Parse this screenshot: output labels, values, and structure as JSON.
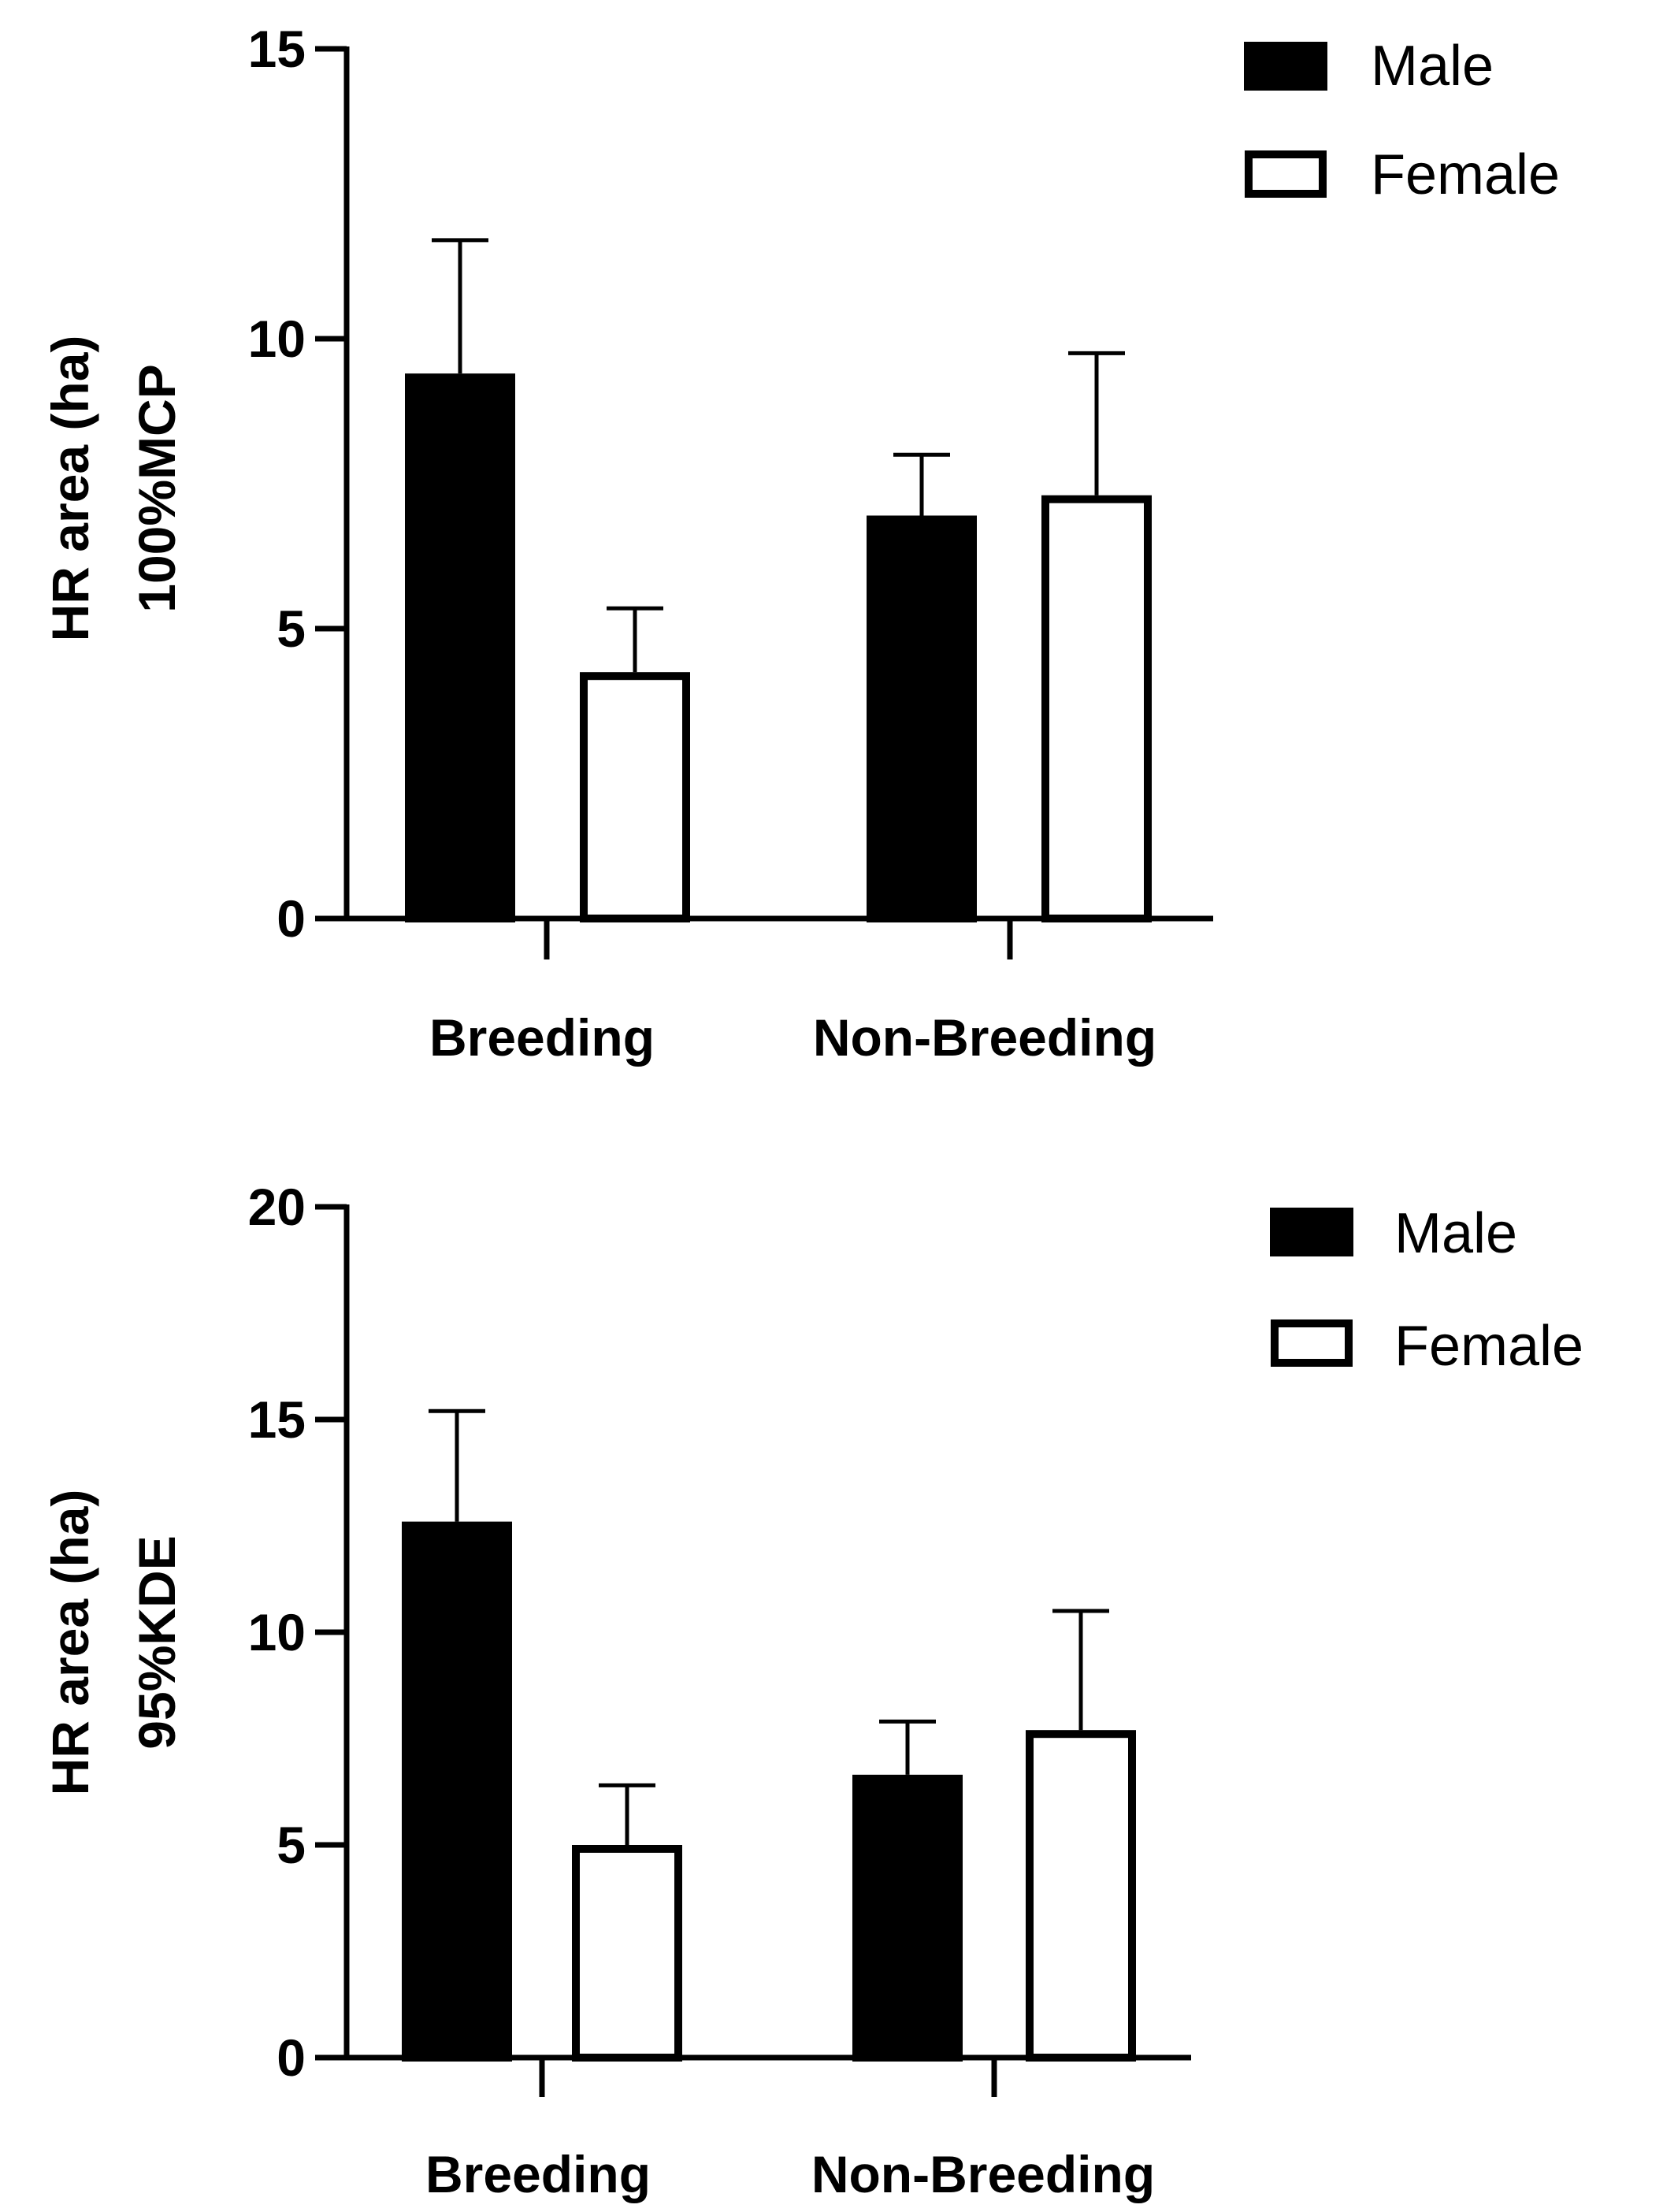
{
  "colors": {
    "male": "#000000",
    "female": "#ffffff",
    "axis": "#000000",
    "background": "#ffffff"
  },
  "chart_data": [
    {
      "type": "bar",
      "categories": [
        "Breeding",
        "Non-Breeding"
      ],
      "series": [
        {
          "name": "Male",
          "values": [
            9.4,
            6.95
          ],
          "error": [
            2.3,
            1.05
          ]
        },
        {
          "name": "Female",
          "values": [
            4.25,
            7.3
          ],
          "error": [
            1.1,
            2.45
          ]
        }
      ],
      "xlabel": "",
      "ylabel": [
        "HR area (ha)",
        "100%MCP"
      ],
      "ylim": [
        0,
        15
      ],
      "yticks": [
        0,
        5,
        10,
        15
      ],
      "ytick_labels": [
        "0",
        "5",
        "10",
        "15"
      ],
      "legend": [
        "Male",
        "Female"
      ],
      "legend_position": "top-right",
      "grid": false
    },
    {
      "type": "bar",
      "categories": [
        "Breeding",
        "Non-Breeding"
      ],
      "series": [
        {
          "name": "Male",
          "values": [
            12.6,
            6.65
          ],
          "error": [
            2.6,
            1.25
          ]
        },
        {
          "name": "Female",
          "values": [
            5.0,
            7.7
          ],
          "error": [
            1.4,
            2.8
          ]
        }
      ],
      "xlabel": "",
      "ylabel": [
        "HR area (ha)",
        "95%KDE"
      ],
      "ylim": [
        0,
        20
      ],
      "yticks": [
        0,
        5,
        10,
        15,
        20
      ],
      "ytick_labels": [
        "0",
        "5",
        "10",
        "15",
        "20"
      ],
      "legend": [
        "Male",
        "Female"
      ],
      "legend_position": "top-right",
      "grid": false
    }
  ]
}
